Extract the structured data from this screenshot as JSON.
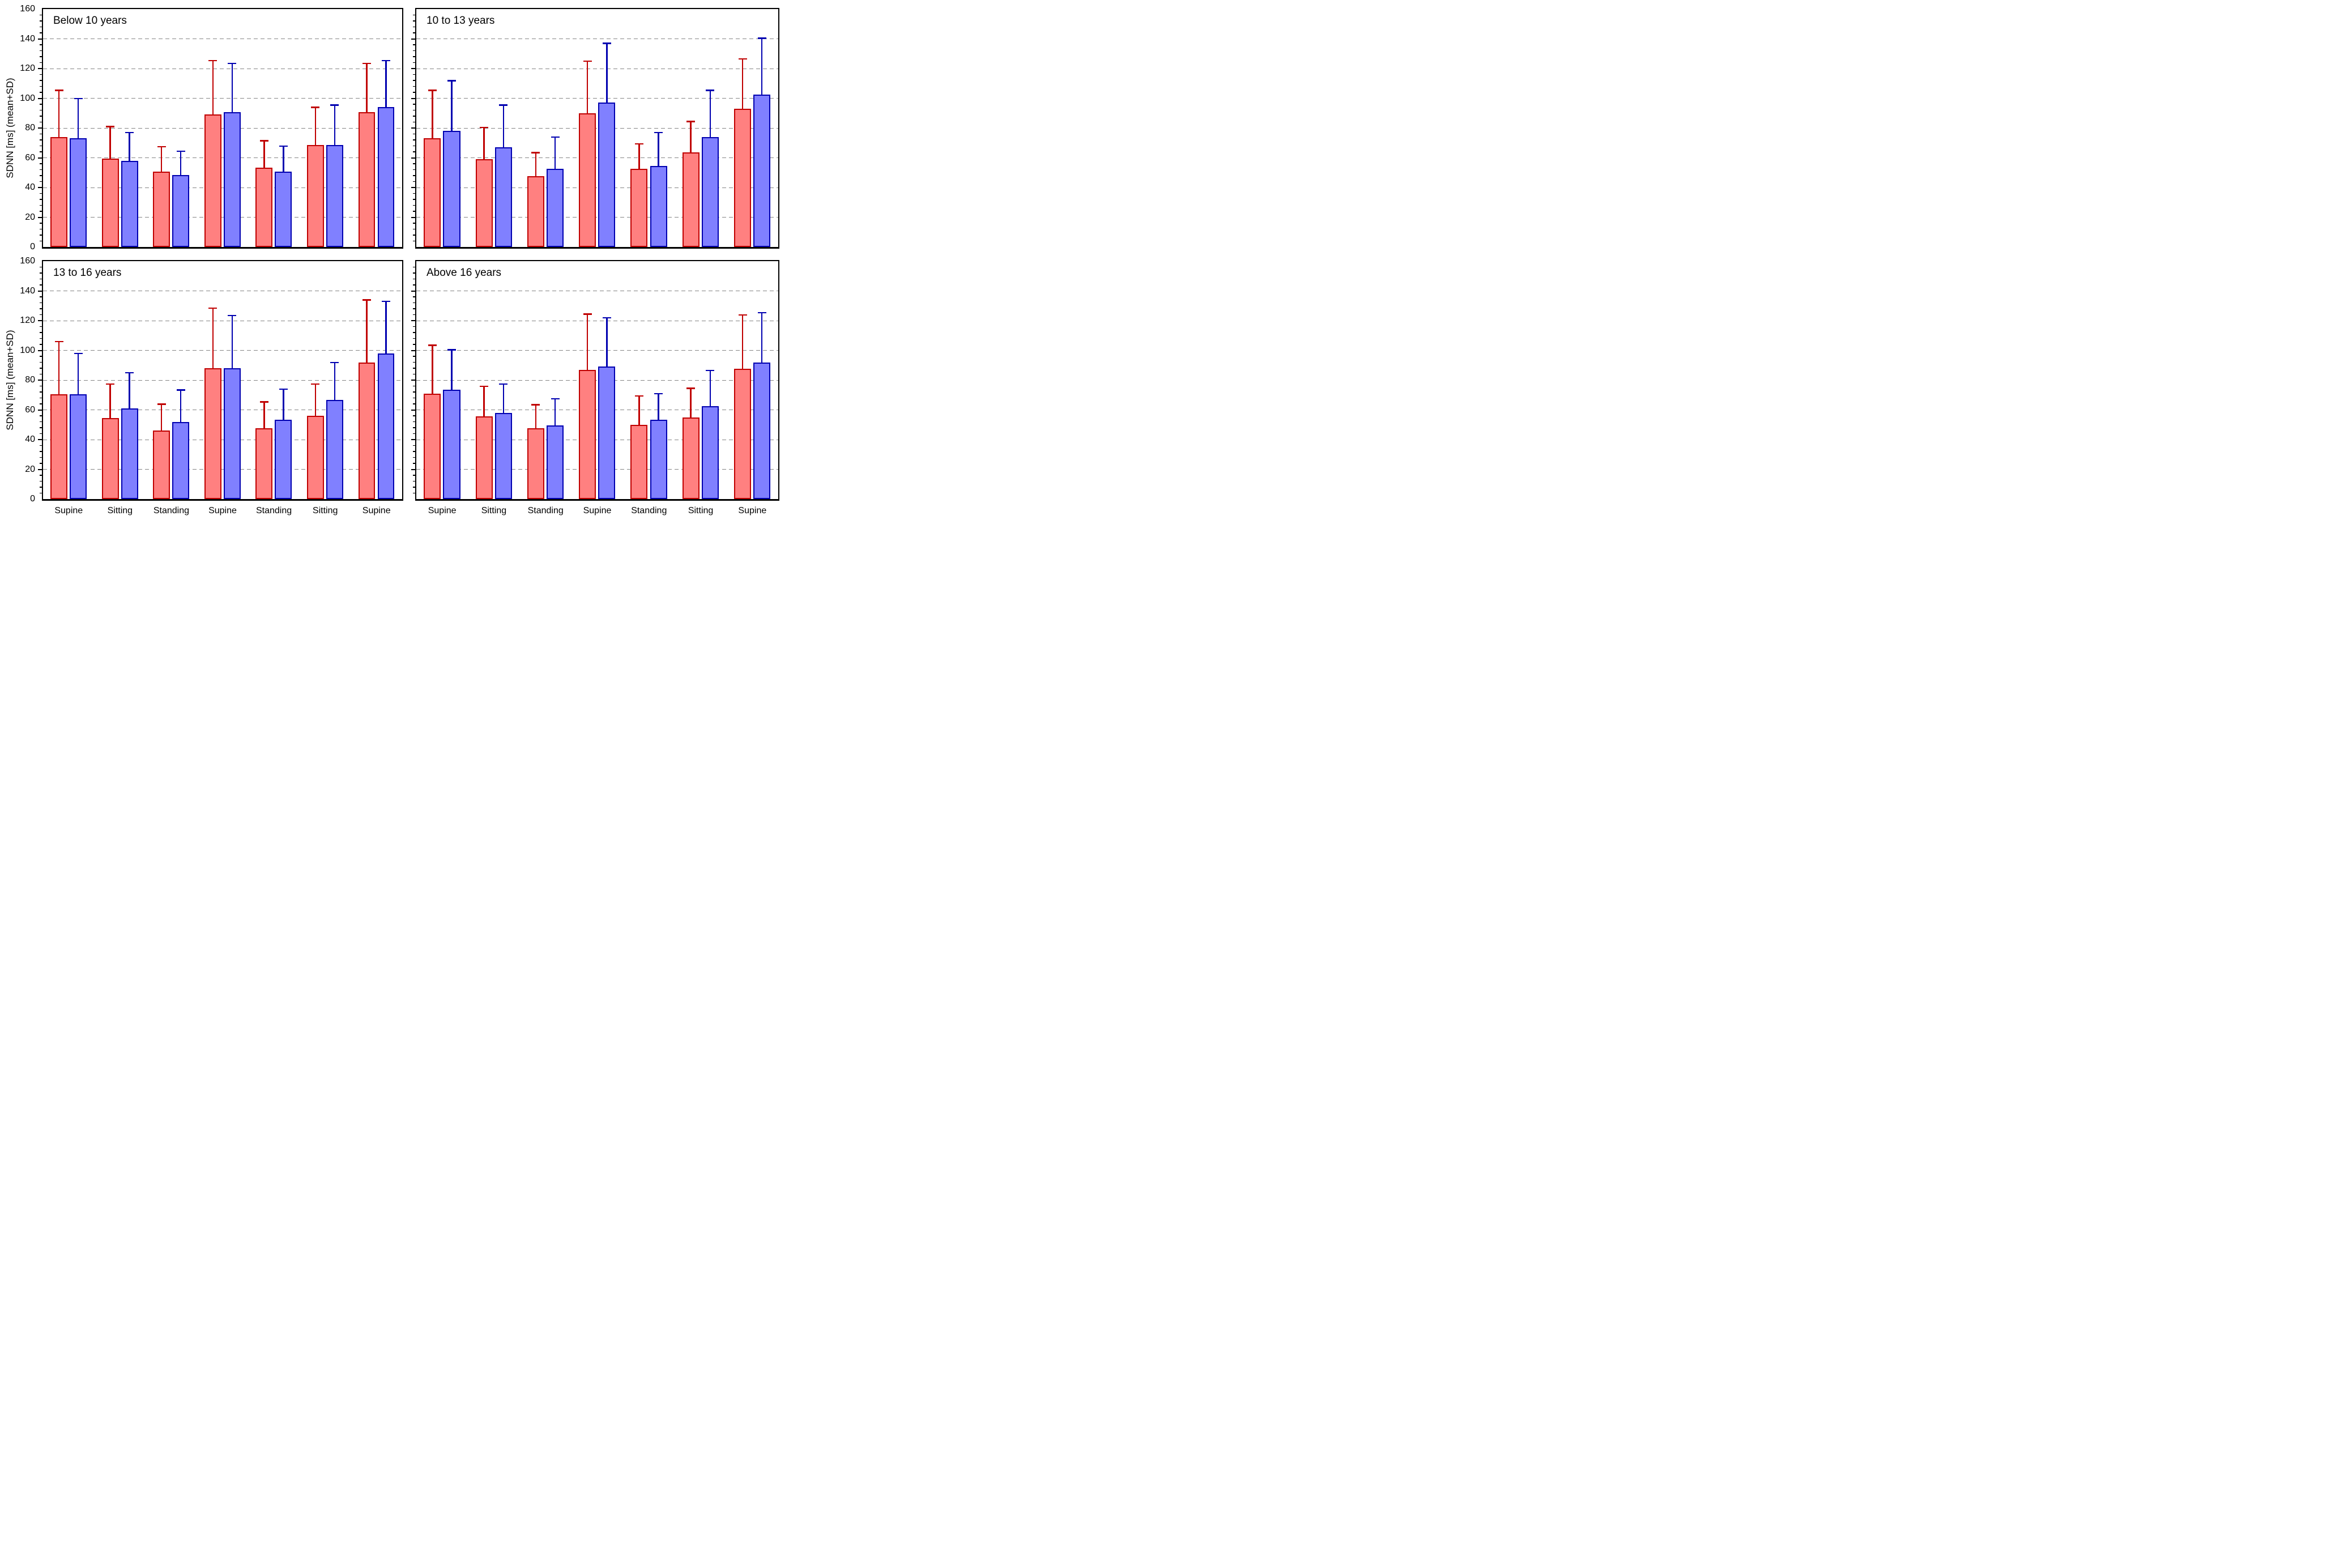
{
  "figure": {
    "ylabel": "SDNN [ms] (mean+SD)",
    "background": "#FFFFFF",
    "grid_color": "#858585",
    "axis_color": "#000000",
    "ytick_labels": [
      "0",
      "20",
      "40",
      "60",
      "80",
      "100",
      "120",
      "140",
      "160"
    ],
    "categories": [
      "Supine",
      "Sitting",
      "Standing",
      "Supine",
      "Standing",
      "Sitting",
      "Supine"
    ],
    "series_styles": [
      {
        "key": "red",
        "fill": "#FF8080",
        "edge": "#C00000"
      },
      {
        "key": "blue",
        "fill": "#8080FF",
        "edge": "#0000B0"
      }
    ]
  },
  "chart_data": [
    {
      "type": "bar",
      "title": "Below 10 years",
      "position": "top-left",
      "xlabel": "",
      "ylabel": "SDNN [ms] (mean+SD)",
      "ylim": [
        0,
        160
      ],
      "ytick_step": 20,
      "minor_tick_step": 4,
      "grid": true,
      "legend": "none",
      "categories": [
        "Supine",
        "Sitting",
        "Standing",
        "Supine",
        "Standing",
        "Sitting",
        "Supine"
      ],
      "series": [
        {
          "name": "red",
          "means": [
            74,
            59.5,
            50.5,
            89,
            53.5,
            68.5,
            90.5
          ],
          "upper": [
            105.5,
            81,
            67.5,
            125.5,
            71.5,
            94,
            123.5
          ]
        },
        {
          "name": "blue",
          "means": [
            73,
            58,
            48.5,
            90.5,
            50.5,
            68.5,
            94
          ],
          "upper": [
            100,
            77,
            64.5,
            123.5,
            68,
            95.5,
            125.5
          ]
        }
      ]
    },
    {
      "type": "bar",
      "title": "10 to 13 years",
      "position": "top-right",
      "xlabel": "",
      "ylabel": "SDNN [ms] (mean+SD)",
      "ylim": [
        0,
        160
      ],
      "ytick_step": 20,
      "minor_tick_step": 4,
      "grid": true,
      "legend": "none",
      "categories": [
        "Supine",
        "Sitting",
        "Standing",
        "Supine",
        "Standing",
        "Sitting",
        "Supine"
      ],
      "series": [
        {
          "name": "red",
          "means": [
            73,
            59,
            47.5,
            90,
            52.5,
            63.5,
            93
          ],
          "upper": [
            105.5,
            80.5,
            63.5,
            125,
            69.5,
            84.5,
            126.5
          ]
        },
        {
          "name": "blue",
          "means": [
            78,
            67,
            52.5,
            97,
            54.5,
            74,
            102.5
          ],
          "upper": [
            112,
            95.5,
            74,
            137,
            77,
            105.5,
            140.5
          ]
        }
      ]
    },
    {
      "type": "bar",
      "title": "13 to 16 years",
      "position": "bottom-left",
      "xlabel": "",
      "ylabel": "SDNN [ms] (mean+SD)",
      "ylim": [
        0,
        160
      ],
      "ytick_step": 20,
      "minor_tick_step": 4,
      "grid": true,
      "legend": "none",
      "categories": [
        "Supine",
        "Sitting",
        "Standing",
        "Supine",
        "Standing",
        "Sitting",
        "Supine"
      ],
      "series": [
        {
          "name": "red",
          "means": [
            70.5,
            54.5,
            46,
            88,
            47.5,
            56,
            92
          ],
          "upper": [
            106,
            77.5,
            64,
            128.5,
            65.5,
            77.5,
            134
          ]
        },
        {
          "name": "blue",
          "means": [
            70.5,
            61,
            52,
            88,
            53.5,
            66.5,
            98
          ],
          "upper": [
            98,
            85,
            73.5,
            123.5,
            74,
            92,
            133
          ]
        }
      ]
    },
    {
      "type": "bar",
      "title": "Above 16 years",
      "position": "bottom-right",
      "xlabel": "",
      "ylabel": "SDNN [ms] (mean+SD)",
      "ylim": [
        0,
        160
      ],
      "ytick_step": 20,
      "minor_tick_step": 4,
      "grid": true,
      "legend": "none",
      "categories": [
        "Supine",
        "Sitting",
        "Standing",
        "Supine",
        "Standing",
        "Sitting",
        "Supine"
      ],
      "series": [
        {
          "name": "red",
          "means": [
            71,
            55.5,
            47.5,
            87,
            50,
            55,
            87.5
          ],
          "upper": [
            103.5,
            76,
            63.5,
            124.5,
            69.5,
            74.5,
            124
          ]
        },
        {
          "name": "blue",
          "means": [
            73.5,
            58,
            49.5,
            89,
            53.5,
            62.5,
            92
          ],
          "upper": [
            100.5,
            77.5,
            67.5,
            122,
            71,
            86.5,
            125.5
          ]
        }
      ]
    }
  ]
}
